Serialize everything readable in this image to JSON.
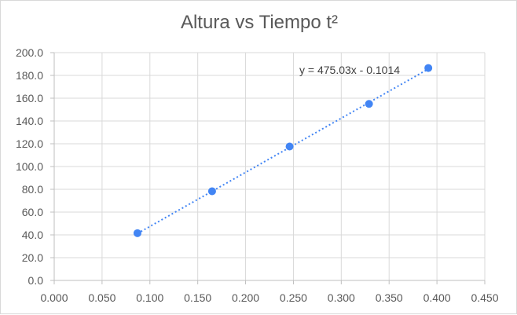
{
  "chart_data": {
    "type": "scatter",
    "title": "Altura vs Tiempo t²",
    "xlabel": "",
    "ylabel": "",
    "xlim": [
      0,
      0.45
    ],
    "ylim": [
      0,
      200
    ],
    "x_ticks": [
      "0.000",
      "0.050",
      "0.100",
      "0.150",
      "0.200",
      "0.250",
      "0.300",
      "0.350",
      "0.400",
      "0.450"
    ],
    "y_ticks": [
      "0.0",
      "20.0",
      "40.0",
      "60.0",
      "80.0",
      "100.0",
      "120.0",
      "140.0",
      "160.0",
      "180.0",
      "200.0"
    ],
    "grid": true,
    "series": [
      {
        "x": [
          0.087,
          0.165,
          0.246,
          0.329,
          0.391
        ],
        "y": [
          41.5,
          78.3,
          117.6,
          155.0,
          186.5
        ],
        "color": "#4285f4"
      }
    ],
    "trendline": {
      "type": "linear",
      "equation": "y = 475.03x - 0.1014",
      "slope": 475.03,
      "intercept": -0.1014,
      "style": "dotted",
      "color": "#4285f4"
    }
  }
}
